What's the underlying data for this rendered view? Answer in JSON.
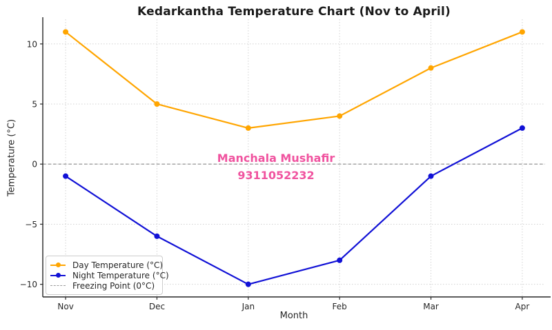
{
  "title": "Kedarkantha Temperature Chart (Nov to April)",
  "watermark": {
    "line1": "Manchala Mushafir",
    "line2": "9311052232",
    "color": "#f0539f"
  },
  "chart_data": {
    "type": "line",
    "categories": [
      "Nov",
      "Dec",
      "Jan",
      "Feb",
      "Mar",
      "Apr"
    ],
    "series": [
      {
        "name": "Day Temperature (°C)",
        "color": "#ffa500",
        "values": [
          11,
          5,
          3,
          4,
          8,
          11
        ]
      },
      {
        "name": "Night Temperature (°C)",
        "color": "#1111d6",
        "values": [
          -1,
          -6,
          -10,
          -8,
          -1,
          3
        ]
      }
    ],
    "reference_line": {
      "label": "Freezing Point (0°C)",
      "value": 0,
      "color": "#8a8a8a",
      "style": "dashed"
    },
    "title": "Kedarkantha Temperature Chart (Nov to April)",
    "xlabel": "Month",
    "ylabel": "Temperature (°C)",
    "yticks": [
      -10,
      -5,
      0,
      5,
      10
    ],
    "ylim": [
      -11.05,
      12.05
    ],
    "xlim_pad": 0.25,
    "grid": true,
    "grid_color": "#d2d2d2",
    "legend_position": "lower-left",
    "spine_color": "#262626"
  }
}
